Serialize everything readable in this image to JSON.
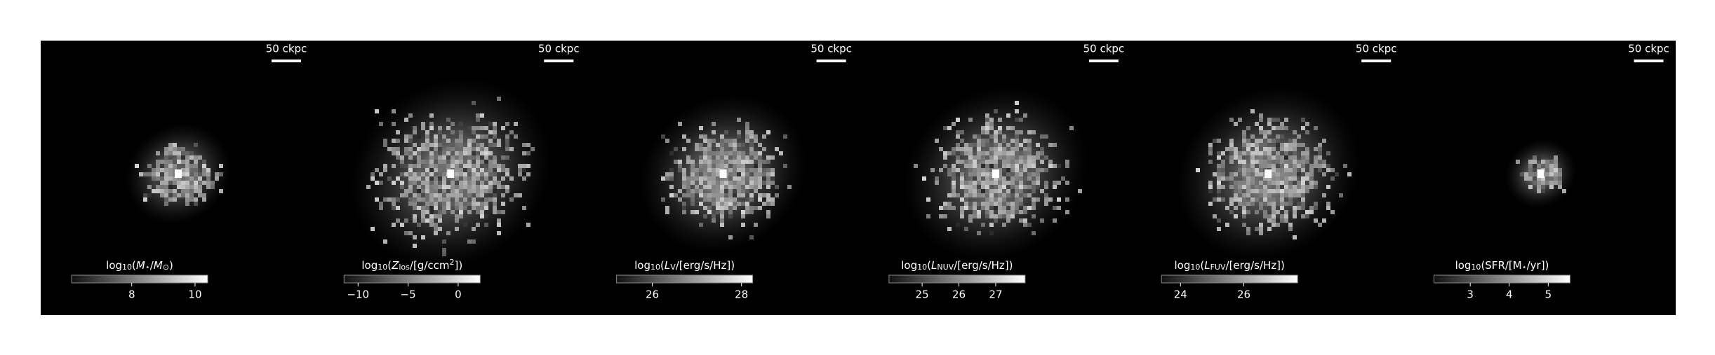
{
  "chart_data": [
    {
      "type": "image",
      "scale_bar": "50 ckpc",
      "title": [
        {
          "text": "log"
        },
        {
          "text": "10",
          "shift": "sub"
        },
        {
          "text": "("
        },
        {
          "text": "M",
          "style": "italic"
        },
        {
          "text": "⋆",
          "shift": "sub"
        },
        {
          "text": "/"
        },
        {
          "text": "M",
          "style": "italic"
        },
        {
          "text": "⊙",
          "shift": "sub"
        },
        {
          "text": ")"
        }
      ],
      "clim": [
        6.1,
        10.4
      ],
      "cticks": [
        8,
        10
      ]
    },
    {
      "type": "image",
      "scale_bar": "50 ckpc",
      "title": [
        {
          "text": "log"
        },
        {
          "text": "10",
          "shift": "sub"
        },
        {
          "text": "("
        },
        {
          "text": "Z",
          "style": "italic"
        },
        {
          "text": "los",
          "shift": "sub"
        },
        {
          "text": "/[g/ccm"
        },
        {
          "text": "2",
          "shift": "sup"
        },
        {
          "text": "])"
        }
      ],
      "clim": [
        -11.4,
        2.2
      ],
      "cticks": [
        {
          "value": -10,
          "label": "−10"
        },
        {
          "value": -5,
          "label": "−5"
        },
        0
      ]
    },
    {
      "type": "image",
      "scale_bar": "50 ckpc",
      "title": [
        {
          "text": "log"
        },
        {
          "text": "10",
          "shift": "sub"
        },
        {
          "text": "("
        },
        {
          "text": "L",
          "style": "italic"
        },
        {
          "text": "V",
          "shift": "sub"
        },
        {
          "text": "/[erg/s/Hz])"
        }
      ],
      "clim": [
        25.2,
        28.25
      ],
      "cticks": [
        26,
        28
      ]
    },
    {
      "type": "image",
      "scale_bar": "50 ckpc",
      "title": [
        {
          "text": "log"
        },
        {
          "text": "10",
          "shift": "sub"
        },
        {
          "text": "("
        },
        {
          "text": "L",
          "style": "italic"
        },
        {
          "text": "NUV",
          "shift": "sub"
        },
        {
          "text": "/[erg/s/Hz])"
        }
      ],
      "clim": [
        24.1,
        27.8
      ],
      "cticks": [
        25,
        26,
        27
      ]
    },
    {
      "type": "image",
      "scale_bar": "50 ckpc",
      "title": [
        {
          "text": "log"
        },
        {
          "text": "10",
          "shift": "sub"
        },
        {
          "text": "("
        },
        {
          "text": "L",
          "style": "italic"
        },
        {
          "text": "FUV",
          "shift": "sub"
        },
        {
          "text": "/[erg/s/Hz])"
        }
      ],
      "clim": [
        23.4,
        27.7
      ],
      "cticks": [
        24,
        26
      ]
    },
    {
      "type": "image",
      "scale_bar": "50 ckpc",
      "title": [
        {
          "text": "log"
        },
        {
          "text": "10",
          "shift": "sub"
        },
        {
          "text": "(SFR/[M"
        },
        {
          "text": "⋆",
          "shift": "sub"
        },
        {
          "text": "/yr])"
        }
      ],
      "clim": [
        2.07,
        5.56
      ],
      "cticks": [
        3,
        4,
        5
      ]
    }
  ]
}
